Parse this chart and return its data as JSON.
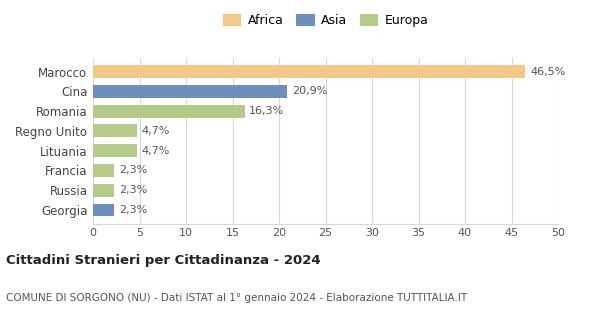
{
  "categories": [
    "Georgia",
    "Russia",
    "Francia",
    "Lituania",
    "Regno Unito",
    "Romania",
    "Cina",
    "Marocco"
  ],
  "values": [
    2.3,
    2.3,
    2.3,
    4.7,
    4.7,
    16.3,
    20.9,
    46.5
  ],
  "labels": [
    "2,3%",
    "2,3%",
    "2,3%",
    "4,7%",
    "4,7%",
    "16,3%",
    "20,9%",
    "46,5%"
  ],
  "colors": [
    "#6e8fbb",
    "#b5c98a",
    "#b5c98a",
    "#b5c98a",
    "#b5c98a",
    "#b5c98a",
    "#6e8fbb",
    "#f2c98a"
  ],
  "legend_labels": [
    "Africa",
    "Asia",
    "Europa"
  ],
  "legend_colors": [
    "#f2c98a",
    "#6e8fbb",
    "#b5c98a"
  ],
  "xlim": [
    0,
    50
  ],
  "xticks": [
    0,
    5,
    10,
    15,
    20,
    25,
    30,
    35,
    40,
    45,
    50
  ],
  "title": "Cittadini Stranieri per Cittadinanza - 2024",
  "subtitle": "COMUNE DI SORGONO (NU) - Dati ISTAT al 1° gennaio 2024 - Elaborazione TUTTITALIA.IT",
  "bg_color": "#ffffff",
  "grid_color": "#d8d8d8"
}
